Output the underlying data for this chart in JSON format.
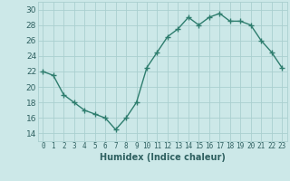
{
  "x": [
    0,
    1,
    2,
    3,
    4,
    5,
    6,
    7,
    8,
    9,
    10,
    11,
    12,
    13,
    14,
    15,
    16,
    17,
    18,
    19,
    20,
    21,
    22,
    23
  ],
  "y": [
    22,
    21.5,
    19,
    18,
    17,
    16.5,
    16,
    14.5,
    16,
    18,
    22.5,
    24.5,
    26.5,
    27.5,
    29,
    28,
    29,
    29.5,
    28.5,
    28.5,
    28,
    26,
    24.5,
    22.5
  ],
  "line_color": "#2e7d6e",
  "marker_color": "#2e7d6e",
  "bg_color": "#cce8e8",
  "grid_color": "#aacfcf",
  "xlabel": "Humidex (Indice chaleur)",
  "ylim": [
    13,
    31
  ],
  "xlim": [
    -0.5,
    23.5
  ],
  "yticks": [
    14,
    16,
    18,
    20,
    22,
    24,
    26,
    28,
    30
  ],
  "xticks": [
    0,
    1,
    2,
    3,
    4,
    5,
    6,
    7,
    8,
    9,
    10,
    11,
    12,
    13,
    14,
    15,
    16,
    17,
    18,
    19,
    20,
    21,
    22,
    23
  ],
  "xtick_labels": [
    "0",
    "1",
    "2",
    "3",
    "4",
    "5",
    "6",
    "7",
    "8",
    "9",
    "10",
    "11",
    "12",
    "13",
    "14",
    "15",
    "16",
    "17",
    "18",
    "19",
    "20",
    "21",
    "22",
    "23"
  ],
  "tick_color": "#2e6060",
  "xlabel_fontsize": 7,
  "tick_fontsize": 5.5,
  "ytick_fontsize": 6.5
}
